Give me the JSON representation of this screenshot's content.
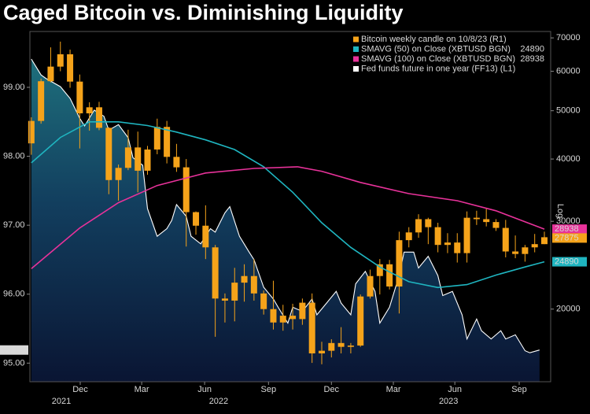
{
  "chart_data": {
    "type": "candlestick",
    "title": "Caged Bitcoin vs. Diminishing Liquidity",
    "xlim": [
      -0.3,
      107.3
    ],
    "xticks": [
      {
        "value": 10.1,
        "label": "Dec"
      },
      {
        "value": 22.8,
        "label": "Mar"
      },
      {
        "value": 35.8,
        "label": "Jun"
      },
      {
        "value": 49,
        "label": "Sep"
      },
      {
        "value": 62,
        "label": "Dec"
      },
      {
        "value": 74.8,
        "label": "Mar"
      },
      {
        "value": 87.5,
        "label": "Jun"
      },
      {
        "value": 100.8,
        "label": "Sep"
      }
    ],
    "year_ticks": [
      {
        "value": 6.2,
        "label": "2021"
      },
      {
        "value": 38.7,
        "label": "2022"
      },
      {
        "value": 86.2,
        "label": "2023"
      }
    ],
    "ylim": [
      94.73,
      99.81
    ],
    "yticks": [
      {
        "value": 95,
        "label": "95.00"
      },
      {
        "value": 96,
        "label": "96.00"
      },
      {
        "value": 97,
        "label": "97.00"
      },
      {
        "value": 98,
        "label": "98.00"
      },
      {
        "value": 99,
        "label": "99.00"
      }
    ],
    "y2lim": [
      14300,
      72100
    ],
    "y2ticks": [
      20000,
      30000,
      40000,
      50000,
      60000,
      70000
    ],
    "y2log": true,
    "y2_scale_label": "Log",
    "legend": "top-right",
    "candles": {
      "name": "Bitcoin weekly candle on 10/8/23 (R1)",
      "color": "#f5a31a",
      "axis": "y2",
      "x": [
        0,
        2,
        4,
        6,
        8,
        10,
        12,
        14,
        16,
        18,
        20,
        22,
        24,
        26,
        28,
        30,
        32,
        34,
        36,
        38,
        40,
        42,
        44,
        46,
        48,
        50,
        52,
        54,
        56,
        58,
        60,
        62,
        64,
        66,
        68,
        70,
        72,
        74,
        76,
        78,
        80,
        82,
        84,
        86,
        88,
        90,
        92,
        94,
        96,
        98,
        100,
        102,
        104,
        106
      ],
      "open": [
        43000,
        47700,
        57300,
        61300,
        64900,
        57200,
        49400,
        50800,
        46200,
        36300,
        38400,
        42200,
        37900,
        41800,
        46400,
        40400,
        38500,
        31300,
        29400,
        26600,
        21000,
        20800,
        22600,
        23300,
        21500,
        20000,
        18800,
        19400,
        19100,
        20600,
        16300,
        16500,
        17100,
        16800,
        16900,
        21200,
        23300,
        24600,
        22200,
        27500,
        28500,
        30300,
        29200,
        26900,
        27200,
        25900,
        30500,
        30300,
        29900,
        29100,
        26100,
        25800,
        26600,
        27000
      ],
      "high": [
        48500,
        58000,
        67000,
        68800,
        66300,
        59100,
        52000,
        52100,
        46300,
        39000,
        45800,
        45400,
        42500,
        48200,
        47700,
        42900,
        40000,
        31400,
        32300,
        26900,
        21500,
        24200,
        24600,
        25200,
        21800,
        22800,
        20400,
        20500,
        21000,
        21500,
        17200,
        17400,
        18400,
        17100,
        21400,
        24000,
        25200,
        25100,
        28600,
        29200,
        31000,
        30500,
        29800,
        28400,
        28400,
        31400,
        31500,
        31800,
        30300,
        30200,
        28100,
        26900,
        28300,
        28600
      ],
      "low": [
        40800,
        47100,
        57000,
        60000,
        55600,
        42000,
        45600,
        45700,
        34000,
        33000,
        38000,
        34300,
        37200,
        40900,
        39200,
        37700,
        26700,
        28200,
        25200,
        17600,
        18800,
        18900,
        20700,
        20800,
        19500,
        18200,
        18100,
        18200,
        18600,
        15600,
        15500,
        16000,
        16300,
        16300,
        16800,
        21000,
        21400,
        21900,
        19600,
        26600,
        27800,
        27000,
        26000,
        25900,
        24800,
        24800,
        29500,
        29300,
        28700,
        25400,
        25300,
        24900,
        26000,
        27000
      ],
      "close": [
        47700,
        57300,
        61300,
        64900,
        57200,
        49400,
        50800,
        46200,
        36300,
        38400,
        42200,
        37900,
        41800,
        46400,
        40400,
        38500,
        31300,
        29400,
        26600,
        21000,
        20800,
        22600,
        23300,
        21500,
        20000,
        18800,
        19400,
        19100,
        20600,
        16300,
        16500,
        17100,
        16800,
        16900,
        21200,
        23300,
        24600,
        22200,
        27500,
        28500,
        30300,
        29200,
        26900,
        27200,
        25900,
        30500,
        30300,
        29900,
        29100,
        26100,
        25800,
        26600,
        27000,
        27875
      ]
    },
    "series": [
      {
        "name": "SMAVG (50) on Close (XBTUSD BGN)",
        "color": "#1fb5c0",
        "axis": "y2",
        "x": [
          0,
          6,
          12,
          18,
          24,
          30,
          36,
          42,
          48,
          54,
          60,
          66,
          72,
          78,
          84,
          90,
          96,
          102,
          106
        ],
        "values": [
          39300,
          44200,
          47500,
          47500,
          46700,
          45300,
          43700,
          41800,
          38600,
          34300,
          29800,
          26600,
          24300,
          22700,
          22100,
          22400,
          23400,
          24300,
          24890
        ]
      },
      {
        "name": "SMAVG (100) on Close (XBTUSD BGN)",
        "color": "#e8329a",
        "axis": "y2",
        "x": [
          0,
          10,
          18,
          26,
          36,
          46,
          55,
          60,
          68,
          78,
          88,
          96,
          106
        ],
        "values": [
          24100,
          29100,
          32700,
          35400,
          37500,
          38300,
          38600,
          37800,
          35900,
          34100,
          33000,
          31500,
          28938
        ]
      },
      {
        "name": "Fed funds future in one year (FF13) (L1)",
        "color": "#ffffff",
        "axis": "y",
        "x": [
          0,
          2,
          3,
          6,
          8,
          10,
          11,
          13,
          15,
          16,
          18,
          20,
          21,
          23,
          24,
          26,
          28,
          29,
          30,
          32,
          33,
          35,
          37,
          38,
          40,
          41,
          43,
          45,
          46,
          48,
          50,
          51,
          53,
          54,
          56,
          58,
          59,
          61,
          63,
          64,
          66,
          67,
          69,
          71,
          72,
          74,
          76,
          77,
          79,
          80,
          82,
          84,
          85,
          87,
          89,
          90,
          92,
          93,
          95,
          97,
          98,
          100,
          102,
          103,
          105
        ],
        "values": [
          99.41,
          99.18,
          99.13,
          99.01,
          98.84,
          98.55,
          98.44,
          98.67,
          98.58,
          98.38,
          98.46,
          98.27,
          97.98,
          97.87,
          97.24,
          96.84,
          96.95,
          97.07,
          97.3,
          97.13,
          96.84,
          96.73,
          96.95,
          96.9,
          97.18,
          97.27,
          96.84,
          96.61,
          96.5,
          96.1,
          95.93,
          95.81,
          95.58,
          95.81,
          95.75,
          95.93,
          95.7,
          95.87,
          96.04,
          95.87,
          95.7,
          96.15,
          96.33,
          96.04,
          95.58,
          95.81,
          96.27,
          96.61,
          96.61,
          96.38,
          96.55,
          96.27,
          95.98,
          96.04,
          95.7,
          95.35,
          95.64,
          95.47,
          95.35,
          95.47,
          95.35,
          95.41,
          95.18,
          95.15,
          95.19
        ]
      }
    ]
  }
}
